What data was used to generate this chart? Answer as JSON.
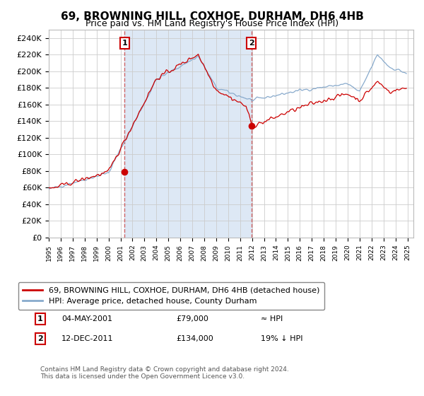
{
  "title": "69, BROWNING HILL, COXHOE, DURHAM, DH6 4HB",
  "subtitle": "Price paid vs. HM Land Registry's House Price Index (HPI)",
  "ylim": [
    0,
    250000
  ],
  "yticks": [
    0,
    20000,
    40000,
    60000,
    80000,
    100000,
    120000,
    140000,
    160000,
    180000,
    200000,
    220000,
    240000
  ],
  "ytick_labels": [
    "£0",
    "£20K",
    "£40K",
    "£60K",
    "£80K",
    "£100K",
    "£120K",
    "£140K",
    "£160K",
    "£180K",
    "£200K",
    "£220K",
    "£240K"
  ],
  "sale1_x": 2001.35,
  "sale1_price": 79000,
  "sale2_x": 2011.95,
  "sale2_price": 134000,
  "legend_line1": "69, BROWNING HILL, COXHOE, DURHAM, DH6 4HB (detached house)",
  "legend_line2": "HPI: Average price, detached house, County Durham",
  "footer": "Contains HM Land Registry data © Crown copyright and database right 2024.\nThis data is licensed under the Open Government Licence v3.0.",
  "line_color_red": "#cc0000",
  "line_color_blue": "#88aacc",
  "shading_color": "#dde8f5",
  "background_color": "#ffffff",
  "grid_color": "#cccccc",
  "vline_color": "#cc4444",
  "title_fontsize": 11,
  "subtitle_fontsize": 9,
  "tick_fontsize": 8,
  "xlim_left": 1995.0,
  "xlim_right": 2025.5
}
